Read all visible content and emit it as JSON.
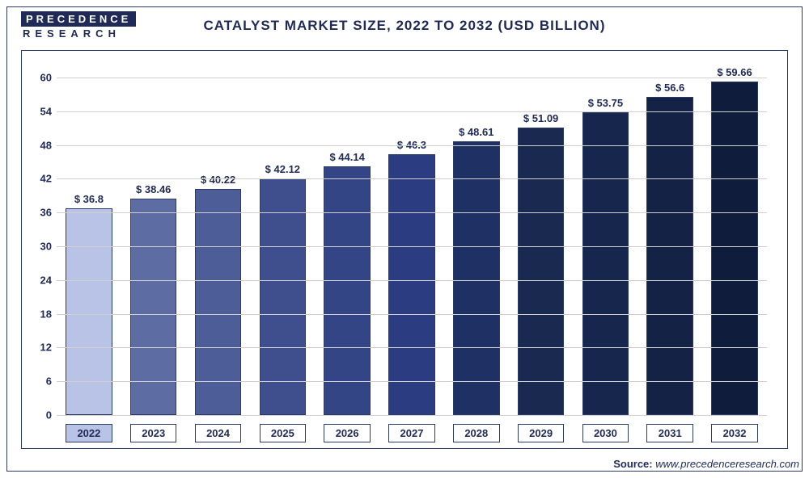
{
  "logo": {
    "top": "PRECEDENCE",
    "bottom": "RESEARCH"
  },
  "chart": {
    "type": "bar",
    "title": "CATALYST MARKET SIZE, 2022 TO 2032 (USD BILLION)",
    "categories": [
      "2022",
      "2023",
      "2024",
      "2025",
      "2026",
      "2027",
      "2028",
      "2029",
      "2030",
      "2031",
      "2032"
    ],
    "values": [
      36.8,
      38.46,
      40.22,
      42.12,
      44.14,
      46.3,
      48.61,
      51.09,
      53.75,
      56.6,
      59.66
    ],
    "value_labels": [
      "$ 36.8",
      "$ 38.46",
      "$ 40.22",
      "$ 42.12",
      "$ 44.14",
      "$ 46.3",
      "$ 48.61",
      "$ 51.09",
      "$ 53.75",
      "$ 56.6",
      "$ 59.66"
    ],
    "bar_colors": [
      "#b9c3e6",
      "#5d6da3",
      "#4d5d97",
      "#3f4f8d",
      "#344586",
      "#2b3d80",
      "#1f3164",
      "#19294f",
      "#17264c",
      "#142245",
      "#0f1c3b"
    ],
    "highlight_category_index": 0,
    "y_axis": {
      "min": 0,
      "max": 62,
      "ticks": [
        0,
        6,
        12,
        18,
        24,
        30,
        36,
        42,
        48,
        54,
        60
      ]
    },
    "grid_color": "#cfcfcf",
    "border_color": "#2b3a67",
    "bar_width_pct": 72,
    "title_fontsize": 17,
    "tick_fontsize": 13,
    "label_fontsize": 13
  },
  "source": {
    "prefix": "Source:",
    "url": "www.precedenceresearch.com"
  }
}
